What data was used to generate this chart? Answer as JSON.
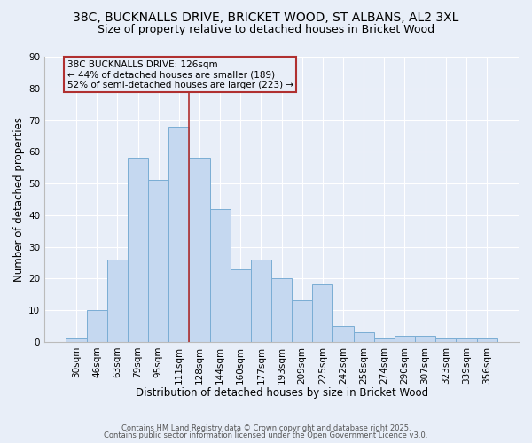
{
  "title_line1": "38C, BUCKNALLS DRIVE, BRICKET WOOD, ST ALBANS, AL2 3XL",
  "title_line2": "Size of property relative to detached houses in Bricket Wood",
  "xlabel": "Distribution of detached houses by size in Bricket Wood",
  "ylabel": "Number of detached properties",
  "bar_color": "#c5d8f0",
  "bar_edge_color": "#7aadd4",
  "background_color": "#e8eef8",
  "categories": [
    "30sqm",
    "46sqm",
    "63sqm",
    "79sqm",
    "95sqm",
    "111sqm",
    "128sqm",
    "144sqm",
    "160sqm",
    "177sqm",
    "193sqm",
    "209sqm",
    "225sqm",
    "242sqm",
    "258sqm",
    "274sqm",
    "290sqm",
    "307sqm",
    "323sqm",
    "339sqm",
    "356sqm"
  ],
  "values": [
    1,
    10,
    26,
    58,
    51,
    68,
    58,
    42,
    23,
    26,
    20,
    13,
    18,
    5,
    3,
    1,
    2,
    2,
    1,
    1,
    1
  ],
  "ylim": [
    0,
    90
  ],
  "yticks": [
    0,
    10,
    20,
    30,
    40,
    50,
    60,
    70,
    80,
    90
  ],
  "annotation_box_text": "38C BUCKNALLS DRIVE: 126sqm\n← 44% of detached houses are smaller (189)\n52% of semi-detached houses are larger (223) →",
  "property_line_x": 5.5,
  "property_line_color": "#b03030",
  "annotation_box_color": "#b03030",
  "footer_line1": "Contains HM Land Registry data © Crown copyright and database right 2025.",
  "footer_line2": "Contains public sector information licensed under the Open Government Licence v3.0.",
  "grid_color": "#ffffff",
  "tick_label_fontsize": 7.5,
  "axis_label_fontsize": 8.5,
  "title_fontsize1": 10,
  "title_fontsize2": 9
}
